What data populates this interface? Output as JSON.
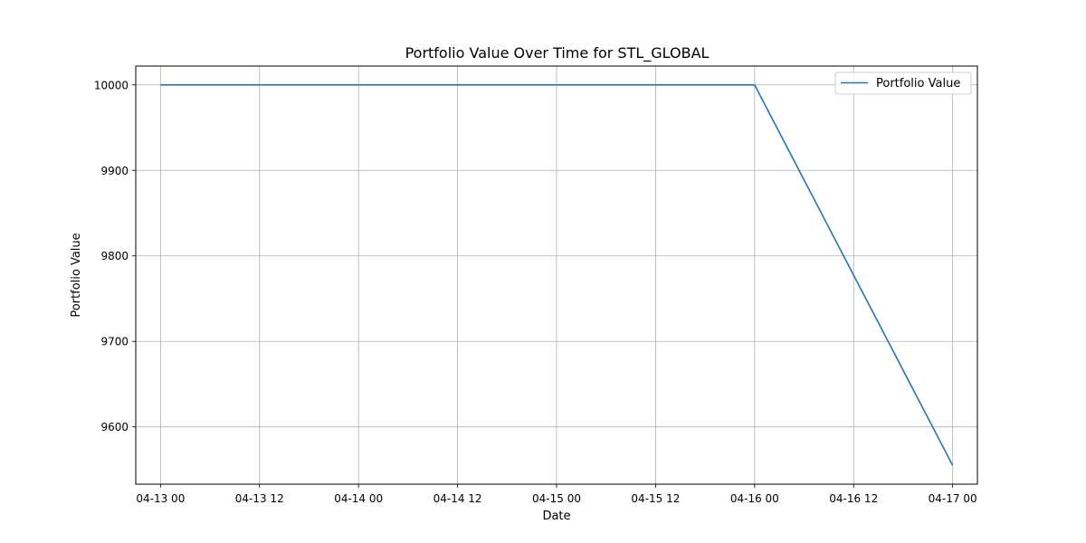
{
  "chart_data": {
    "type": "line",
    "title": "Portfolio Value Over Time for STL_GLOBAL",
    "xlabel": "Date",
    "ylabel": "Portfolio Value",
    "x_tick_labels": [
      "04-13 00",
      "04-13 12",
      "04-14 00",
      "04-14 12",
      "04-15 00",
      "04-15 12",
      "04-16 00",
      "04-16 12",
      "04-17 00"
    ],
    "y_ticks": [
      9600,
      9700,
      9800,
      9900,
      10000
    ],
    "xlim": [
      "2024-04-12T21:00",
      "2024-04-17T03:00"
    ],
    "ylim": [
      9533,
      10022
    ],
    "grid": true,
    "legend_position": "top-right",
    "series": [
      {
        "name": "Portfolio Value",
        "color": "#1f77b4",
        "x": [
          "2024-04-13T00:00",
          "2024-04-14T00:00",
          "2024-04-15T00:00",
          "2024-04-16T00:00",
          "2024-04-17T00:00"
        ],
        "y": [
          10000,
          10000,
          10000,
          10000,
          9555
        ]
      }
    ]
  }
}
